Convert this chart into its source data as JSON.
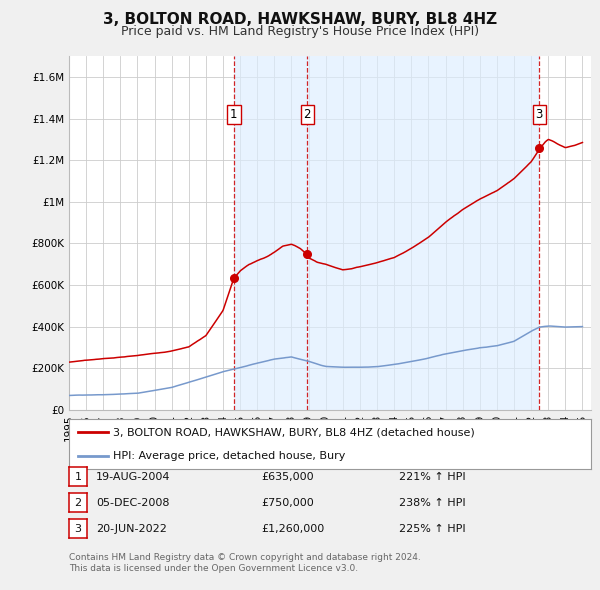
{
  "title": "3, BOLTON ROAD, HAWKSHAW, BURY, BL8 4HZ",
  "subtitle": "Price paid vs. HM Land Registry's House Price Index (HPI)",
  "ylim": [
    0,
    1700000
  ],
  "xlim_start": 1995.0,
  "xlim_end": 2025.5,
  "yticks": [
    0,
    200000,
    400000,
    600000,
    800000,
    1000000,
    1200000,
    1400000,
    1600000
  ],
  "ytick_labels": [
    "£0",
    "£200K",
    "£400K",
    "£600K",
    "£800K",
    "£1M",
    "£1.2M",
    "£1.4M",
    "£1.6M"
  ],
  "background_color": "#f0f0f0",
  "plot_bg_color": "#ffffff",
  "grid_color": "#cccccc",
  "sale_color": "#cc0000",
  "hpi_color": "#7799cc",
  "vline_color": "#cc0000",
  "shade_color": "#ddeeff",
  "transactions": [
    {
      "num": 1,
      "date_x": 2004.63,
      "price": 635000,
      "label": "1"
    },
    {
      "num": 2,
      "date_x": 2008.92,
      "price": 750000,
      "label": "2"
    },
    {
      "num": 3,
      "date_x": 2022.47,
      "price": 1260000,
      "label": "3"
    }
  ],
  "legend_sale_label": "3, BOLTON ROAD, HAWKSHAW, BURY, BL8 4HZ (detached house)",
  "legend_hpi_label": "HPI: Average price, detached house, Bury",
  "table_rows": [
    {
      "num": "1",
      "date": "19-AUG-2004",
      "price": "£635,000",
      "hpi": "221% ↑ HPI"
    },
    {
      "num": "2",
      "date": "05-DEC-2008",
      "price": "£750,000",
      "hpi": "238% ↑ HPI"
    },
    {
      "num": "3",
      "date": "20-JUN-2022",
      "price": "£1,260,000",
      "hpi": "225% ↑ HPI"
    }
  ],
  "footer_line1": "Contains HM Land Registry data © Crown copyright and database right 2024.",
  "footer_line2": "This data is licensed under the Open Government Licence v3.0.",
  "title_fontsize": 11,
  "subtitle_fontsize": 9,
  "axis_fontsize": 7.5,
  "legend_fontsize": 8,
  "table_fontsize": 8,
  "footer_fontsize": 6.5
}
